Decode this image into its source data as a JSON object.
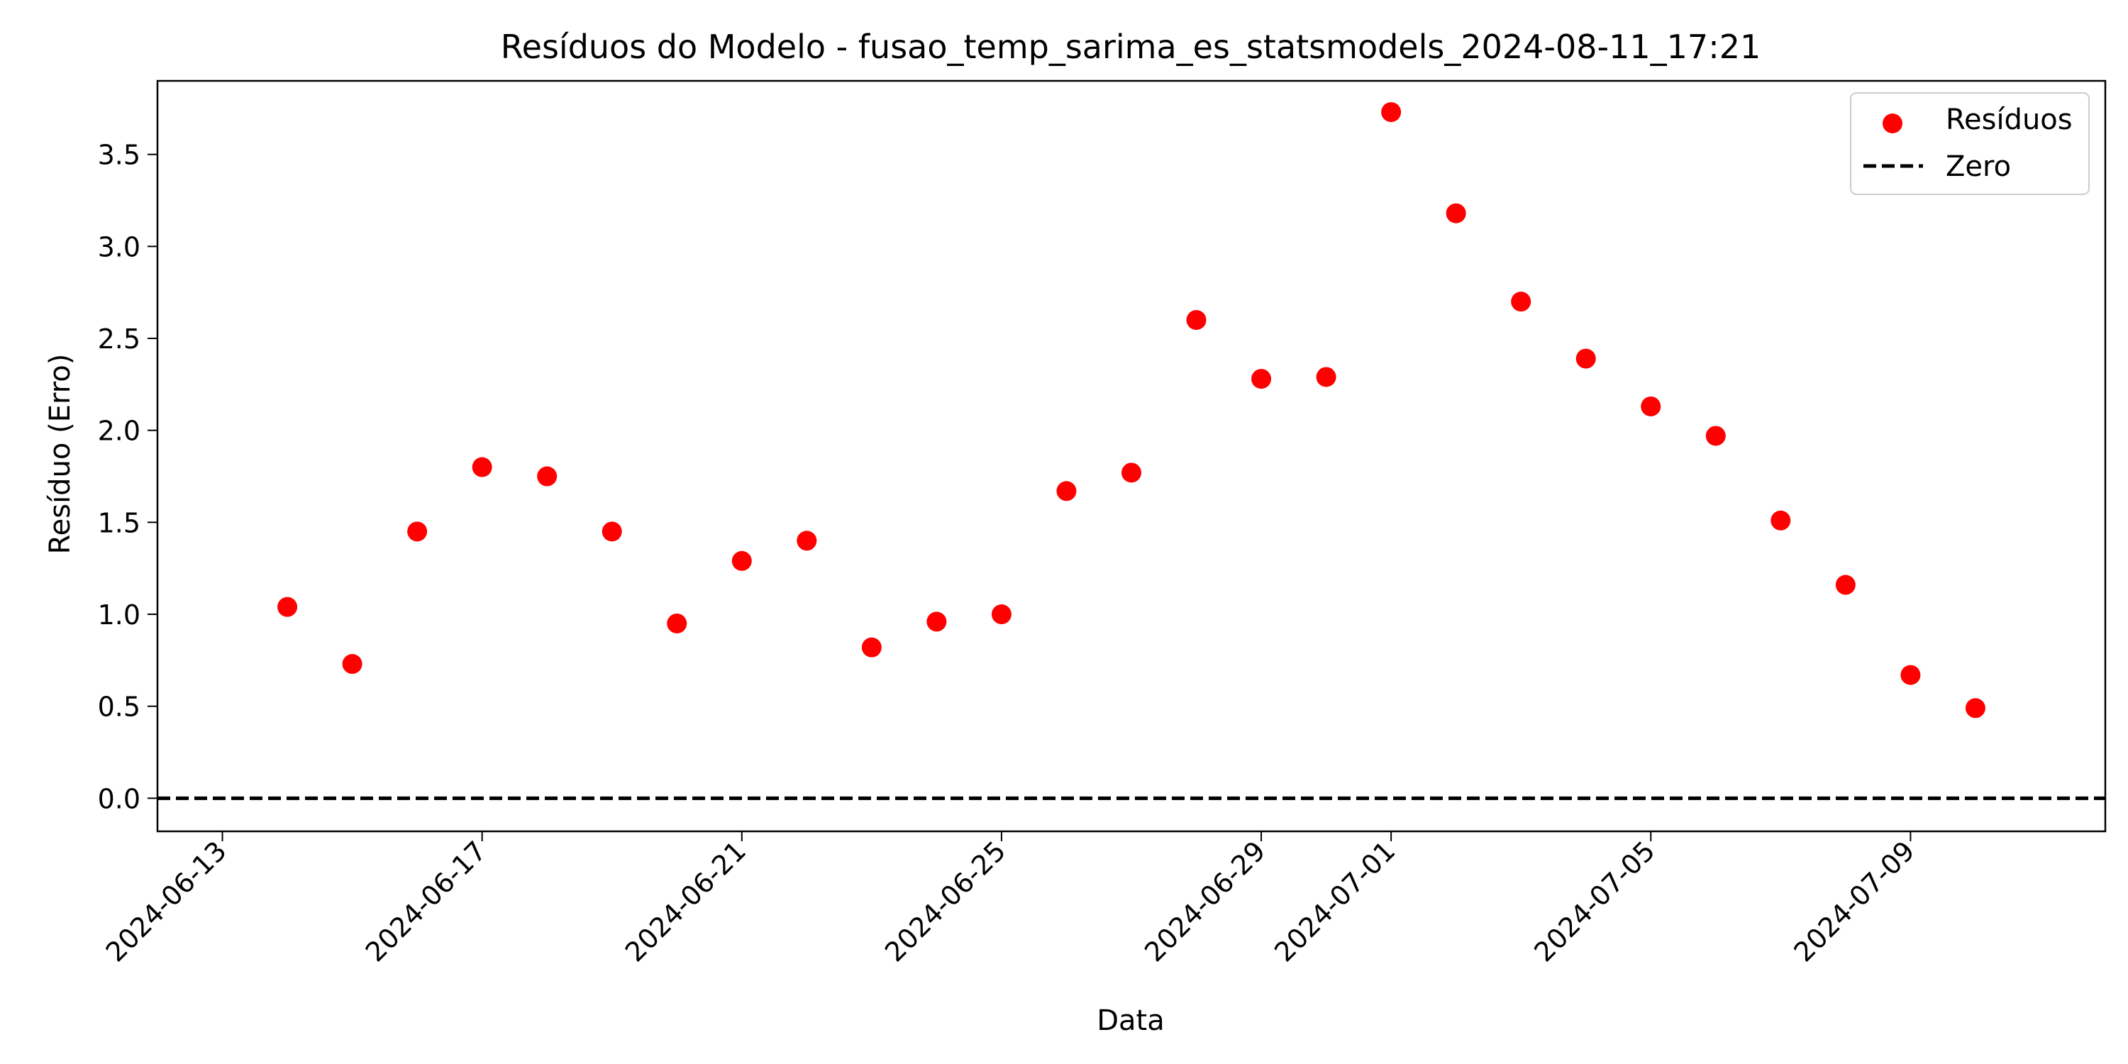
{
  "chart_data": {
    "type": "scatter",
    "title": "Resíduos do Modelo - fusao_temp_sarima_es_statsmodels_2024-08-11_17:21",
    "xlabel": "Data",
    "ylabel": "Resíduo (Erro)",
    "xlim": [
      "2024-06-12",
      "2024-07-12"
    ],
    "ylim": [
      -0.18,
      3.9
    ],
    "xticks": [
      "2024-06-13",
      "2024-06-17",
      "2024-06-21",
      "2024-06-25",
      "2024-06-29",
      "2024-07-01",
      "2024-07-05",
      "2024-07-09"
    ],
    "yticks": [
      0.0,
      0.5,
      1.0,
      1.5,
      2.0,
      2.5,
      3.0,
      3.5
    ],
    "ytick_labels": [
      "0.0",
      "0.5",
      "1.0",
      "1.5",
      "2.0",
      "2.5",
      "3.0",
      "3.5"
    ],
    "grid": false,
    "legend_position": "top-right",
    "series": [
      {
        "name": "Resíduos",
        "color": "#ff0000",
        "marker": "circle",
        "x": [
          "2024-06-14",
          "2024-06-15",
          "2024-06-16",
          "2024-06-17",
          "2024-06-18",
          "2024-06-19",
          "2024-06-20",
          "2024-06-21",
          "2024-06-22",
          "2024-06-23",
          "2024-06-24",
          "2024-06-25",
          "2024-06-26",
          "2024-06-27",
          "2024-06-28",
          "2024-06-29",
          "2024-06-30",
          "2024-07-01",
          "2024-07-02",
          "2024-07-03",
          "2024-07-04",
          "2024-07-05",
          "2024-07-06",
          "2024-07-07",
          "2024-07-08",
          "2024-07-09",
          "2024-07-10"
        ],
        "y": [
          1.04,
          0.73,
          1.45,
          1.8,
          1.75,
          1.45,
          0.95,
          1.29,
          1.4,
          0.82,
          0.96,
          1.0,
          1.67,
          1.77,
          2.6,
          2.28,
          2.29,
          3.73,
          3.18,
          2.7,
          2.39,
          2.13,
          1.97,
          1.51,
          1.16,
          0.67,
          0.49
        ]
      }
    ],
    "reference_lines": [
      {
        "name": "Zero",
        "y": 0,
        "style": "dashed",
        "color": "#000000"
      }
    ]
  }
}
